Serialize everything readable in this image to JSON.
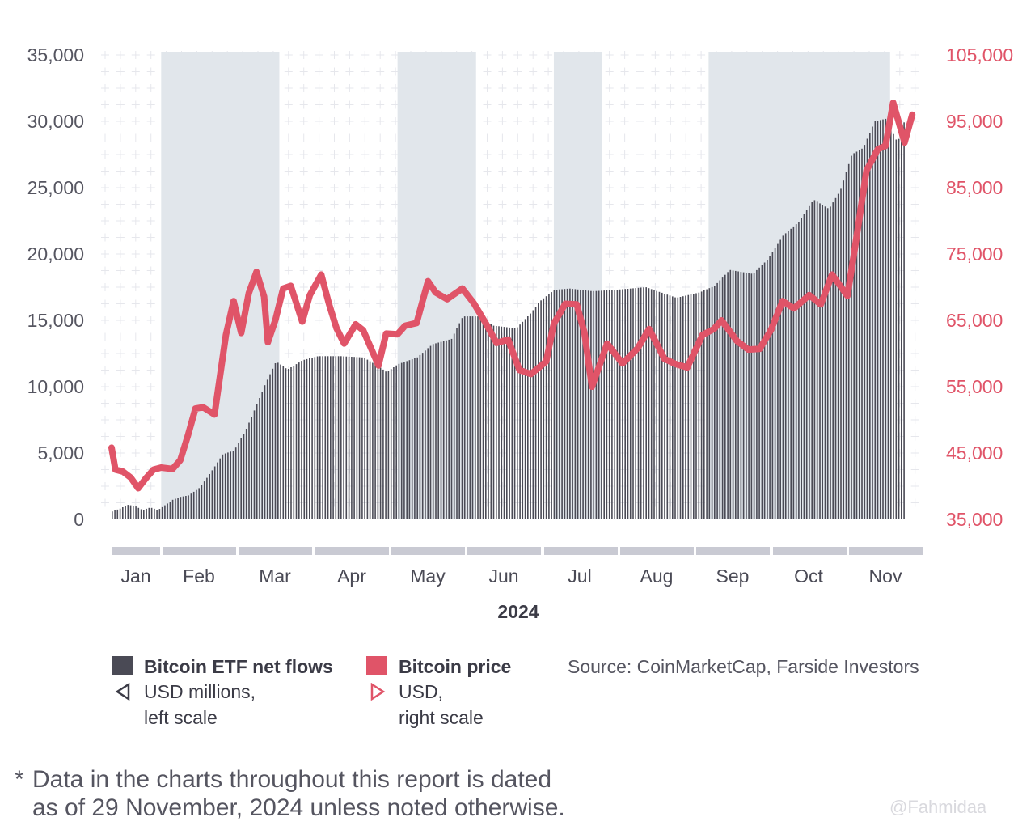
{
  "chart_data": {
    "type": "bar+line",
    "x_label": "2024",
    "months": [
      "Jan",
      "Feb",
      "Mar",
      "Apr",
      "May",
      "Jun",
      "Jul",
      "Aug",
      "Sep",
      "Oct",
      "Nov"
    ],
    "left_axis": {
      "ticks": [
        "35,000",
        "30,000",
        "25,000",
        "20,000",
        "15,000",
        "10,000",
        "5,000",
        "0"
      ],
      "range": [
        0,
        35000
      ],
      "unit": "USD millions"
    },
    "right_axis": {
      "ticks": [
        "105,000",
        "95,000",
        "85,000",
        "75,000",
        "65,000",
        "55,000",
        "45,000",
        "35,000"
      ],
      "range": [
        35000,
        105000
      ],
      "unit": "USD"
    },
    "shaded_periods": [
      [
        "Feb",
        "Mar"
      ],
      [
        "May",
        "May"
      ],
      [
        "Jul",
        "Jul"
      ],
      [
        "Sep",
        "Oct"
      ]
    ],
    "series": [
      {
        "name": "Bitcoin ETF net flows",
        "type": "bar",
        "color": "#4a4a55",
        "points": [
          [
            0,
            600
          ],
          [
            0.05,
            700
          ],
          [
            0.1,
            800
          ],
          [
            0.2,
            1100
          ],
          [
            0.3,
            1000
          ],
          [
            0.4,
            700
          ],
          [
            0.5,
            900
          ],
          [
            0.6,
            700
          ],
          [
            0.7,
            1100
          ],
          [
            0.8,
            1500
          ],
          [
            0.9,
            1700
          ],
          [
            1.0,
            1800
          ],
          [
            1.15,
            2400
          ],
          [
            1.3,
            3600
          ],
          [
            1.45,
            4900
          ],
          [
            1.6,
            5200
          ],
          [
            1.75,
            6700
          ],
          [
            1.9,
            8700
          ],
          [
            2.0,
            10100
          ],
          [
            2.15,
            11900
          ],
          [
            2.3,
            11300
          ],
          [
            2.5,
            12000
          ],
          [
            2.7,
            12300
          ],
          [
            3.0,
            12300
          ],
          [
            3.3,
            12200
          ],
          [
            3.5,
            11500
          ],
          [
            3.6,
            11100
          ],
          [
            3.75,
            11700
          ],
          [
            4.0,
            12200
          ],
          [
            4.2,
            13200
          ],
          [
            4.45,
            13600
          ],
          [
            4.6,
            15300
          ],
          [
            4.8,
            15300
          ],
          [
            5.0,
            14600
          ],
          [
            5.3,
            14400
          ],
          [
            5.5,
            15600
          ],
          [
            5.6,
            16400
          ],
          [
            5.8,
            17300
          ],
          [
            6.0,
            17400
          ],
          [
            6.3,
            17200
          ],
          [
            6.6,
            17300
          ],
          [
            7.0,
            17500
          ],
          [
            7.2,
            17100
          ],
          [
            7.4,
            16700
          ],
          [
            7.7,
            17100
          ],
          [
            7.9,
            17600
          ],
          [
            8.1,
            18800
          ],
          [
            8.4,
            18500
          ],
          [
            8.6,
            19600
          ],
          [
            8.8,
            21400
          ],
          [
            9.0,
            22400
          ],
          [
            9.2,
            24100
          ],
          [
            9.4,
            23400
          ],
          [
            9.55,
            24800
          ],
          [
            9.7,
            27500
          ],
          [
            9.85,
            28000
          ],
          [
            10.0,
            30000
          ],
          [
            10.15,
            30200
          ],
          [
            10.3,
            28400
          ],
          [
            10.4,
            30200
          ]
        ]
      },
      {
        "name": "Bitcoin price",
        "type": "line",
        "color": "#e05468",
        "points": [
          [
            0,
            45800
          ],
          [
            0.05,
            42500
          ],
          [
            0.15,
            42200
          ],
          [
            0.25,
            41300
          ],
          [
            0.35,
            39700
          ],
          [
            0.45,
            41200
          ],
          [
            0.55,
            42500
          ],
          [
            0.65,
            42800
          ],
          [
            0.8,
            42600
          ],
          [
            0.9,
            43900
          ],
          [
            1.0,
            47600
          ],
          [
            1.1,
            51700
          ],
          [
            1.2,
            51900
          ],
          [
            1.35,
            50800
          ],
          [
            1.5,
            62800
          ],
          [
            1.6,
            67900
          ],
          [
            1.7,
            63100
          ],
          [
            1.8,
            69100
          ],
          [
            1.9,
            72300
          ],
          [
            2.0,
            68600
          ],
          [
            2.05,
            61700
          ],
          [
            2.15,
            65100
          ],
          [
            2.25,
            69800
          ],
          [
            2.35,
            70200
          ],
          [
            2.5,
            64800
          ],
          [
            2.6,
            68800
          ],
          [
            2.75,
            71900
          ],
          [
            2.85,
            67500
          ],
          [
            2.95,
            63800
          ],
          [
            3.05,
            61500
          ],
          [
            3.2,
            64400
          ],
          [
            3.3,
            63500
          ],
          [
            3.5,
            58200
          ],
          [
            3.6,
            63000
          ],
          [
            3.75,
            62900
          ],
          [
            3.85,
            64200
          ],
          [
            4.0,
            64600
          ],
          [
            4.15,
            70900
          ],
          [
            4.25,
            69200
          ],
          [
            4.4,
            68200
          ],
          [
            4.6,
            69800
          ],
          [
            4.75,
            67600
          ],
          [
            4.9,
            64700
          ],
          [
            5.05,
            61600
          ],
          [
            5.2,
            62100
          ],
          [
            5.35,
            57500
          ],
          [
            5.5,
            56900
          ],
          [
            5.7,
            58800
          ],
          [
            5.8,
            64500
          ],
          [
            5.95,
            67500
          ],
          [
            6.1,
            67400
          ],
          [
            6.2,
            63200
          ],
          [
            6.3,
            55000
          ],
          [
            6.5,
            61500
          ],
          [
            6.7,
            58500
          ],
          [
            6.9,
            60800
          ],
          [
            7.05,
            63700
          ],
          [
            7.25,
            59200
          ],
          [
            7.4,
            58400
          ],
          [
            7.55,
            57900
          ],
          [
            7.75,
            62800
          ],
          [
            7.9,
            63700
          ],
          [
            8.0,
            65000
          ],
          [
            8.2,
            61900
          ],
          [
            8.35,
            60600
          ],
          [
            8.5,
            60700
          ],
          [
            8.65,
            63600
          ],
          [
            8.8,
            67900
          ],
          [
            8.95,
            66800
          ],
          [
            9.15,
            68800
          ],
          [
            9.3,
            67400
          ],
          [
            9.45,
            71900
          ],
          [
            9.65,
            68700
          ],
          [
            9.75,
            76000
          ],
          [
            9.9,
            87600
          ],
          [
            10.05,
            90800
          ],
          [
            10.15,
            91300
          ],
          [
            10.25,
            97800
          ],
          [
            10.4,
            91800
          ],
          [
            10.5,
            96000
          ]
        ]
      }
    ]
  },
  "legend": {
    "flows": {
      "title": "Bitcoin ETF net flows",
      "desc_line1": "USD millions,",
      "desc_line2": "left scale",
      "color": "#4a4a55"
    },
    "price": {
      "title": "Bitcoin price",
      "desc_line1": "USD,",
      "desc_line2": "right scale",
      "color": "#e05468"
    }
  },
  "source": "Source: CoinMarketCap, Farside Investors",
  "footnote": {
    "star": "*",
    "line1": "Data in the charts throughout this report is dated",
    "line2": "as of 29 November, 2024 unless noted otherwise."
  },
  "watermark": "@Fahmidaa",
  "colors": {
    "left_axis_text": "#555560",
    "right_axis_text": "#e05468",
    "shading": "#e1e6eb",
    "month_band": "#c9cad3"
  }
}
